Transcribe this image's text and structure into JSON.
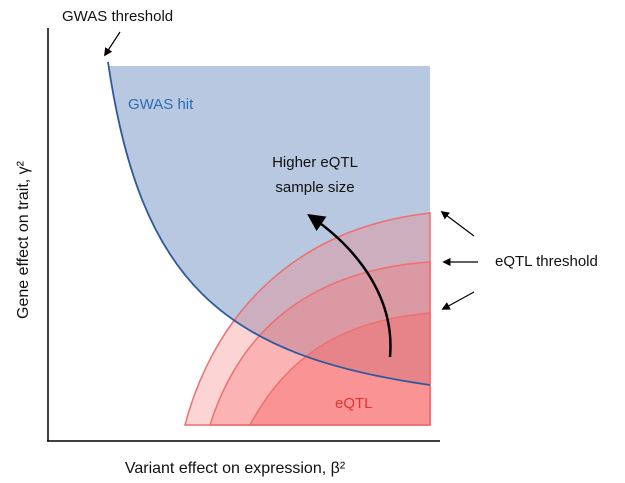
{
  "labels": {
    "gwas_threshold": "GWAS threshold",
    "gwas_hit": "GWAS hit",
    "sample_size": [
      "Higher eQTL",
      "sample size"
    ],
    "eqtl_threshold": "eQTL threshold",
    "eqtl": "eQTL",
    "x_axis": "Variant effect on expression, β²",
    "y_axis": "Gene effect on trait, γ²"
  }
}
